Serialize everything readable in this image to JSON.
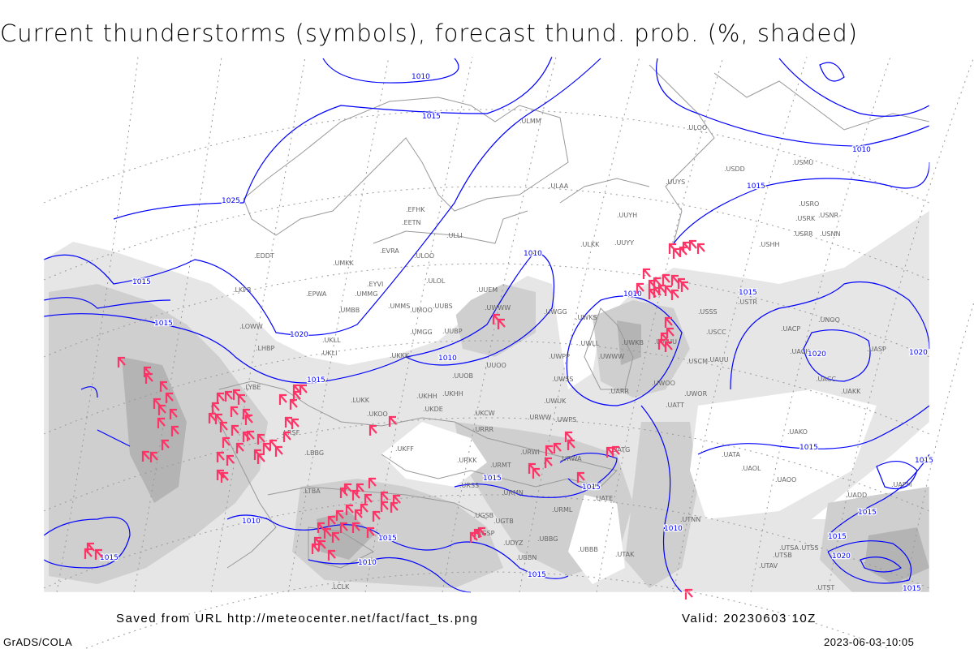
{
  "title": "Current thunderstorms (symbols), forecast thund. prob. (%, shaded)",
  "footer": {
    "saved_from": "Saved from URL http://meteocenter.net/fact/fact_ts.png",
    "valid": "Valid: 20230603 10Z",
    "software": "GrADS/COLA",
    "timestamp": "2023-06-03-10:05"
  },
  "colors": {
    "isobar": "#0000ff",
    "thunderstorm_symbol": "#ff3366",
    "coastline": "#999999",
    "shading_light": "#e6e6e6",
    "shading_mid": "#cfcfcf",
    "shading_dark": "#b4b4b4",
    "station_label": "#666666"
  },
  "legend": {
    "symbols": "thunderstorm-symbol",
    "shading": "thunderstorm probability (%)"
  },
  "isobar_labels": [
    "1010",
    "1015",
    "1010",
    "1015",
    "1025",
    "1010",
    "1015",
    "1010",
    "1015",
    "1015",
    "1020",
    "1010",
    "1015",
    "1020",
    "1020",
    "1015",
    "1015",
    "1015",
    "1010",
    "1015",
    "1010",
    "1015",
    "1010",
    "1015",
    "1015",
    "1015",
    "1020",
    "1015",
    "1015"
  ],
  "stations": [
    "ULMM",
    "ULOO",
    "USDD",
    "USMU",
    "UUYS",
    "ULAA",
    "UUYH",
    "USRO",
    "USRK",
    "USNR",
    "USRR",
    "USNN",
    "ULKK",
    "UUYY",
    "USHH",
    "EFHK",
    "EETN",
    "ULLI",
    "EDDT",
    "UMKK",
    "EVRA",
    "ULOO",
    "ULOL",
    "EYVI",
    "UMMG",
    "EPWA",
    "LKPR",
    "UMBB",
    "UMMS",
    "UMOO",
    "UUBS",
    "UUEM",
    "UWWW",
    "UWGG",
    "UWKS",
    "USSS",
    "USTR",
    "USCC",
    "UWKB",
    "UWUU",
    "UWLL",
    "UWWW",
    "USCM",
    "UAUU",
    "UACP",
    "UNOO",
    "UACK",
    "UASP",
    "UACC",
    "UAKK",
    "LOWW",
    "LHBP",
    "UKLL",
    "UKLI",
    "UMGG",
    "UUBP",
    "UKKK",
    "UUOO",
    "UUOB",
    "UWPP",
    "UWSS",
    "UARR",
    "UWOO",
    "UWOR",
    "UATT",
    "UWUK",
    "UKHH",
    "UKDE",
    "UKHH",
    "UKCW",
    "LUKK",
    "LYBE",
    "LRSF",
    "UKOO",
    "URWW",
    "URRR",
    "UKFF",
    "URKK",
    "URMT",
    "URWI",
    "URWA",
    "UATG",
    "UATA",
    "UAOL",
    "UAOO",
    "UAKO",
    "LBBG",
    "URSS",
    "URMN",
    "UATE",
    "UGSB",
    "URML",
    "UGTB",
    "UBBG",
    "UGSP",
    "UDYZ",
    "UBBN",
    "UBBB",
    "UTAK",
    "UTNN",
    "UTSA",
    "UTSB",
    "UTAV",
    "UTSS",
    "UTST",
    "UAFM",
    "UADD",
    "LTBA",
    "LCLK",
    "UWPS"
  ]
}
